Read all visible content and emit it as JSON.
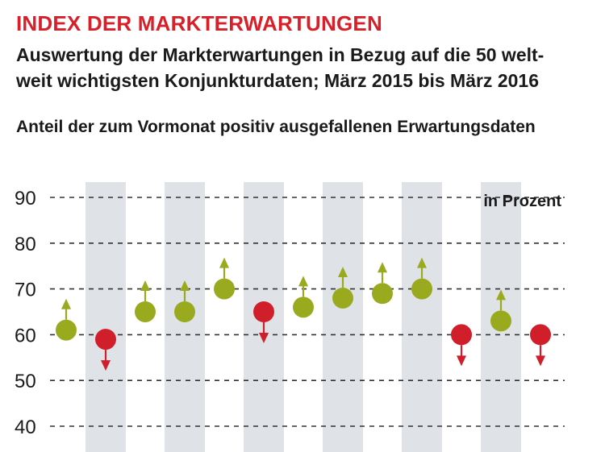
{
  "header": {
    "title": "INDEX DER MARKTERWARTUNGEN",
    "subtitle_line1": "Auswertung der Markterwartungen in Bezug auf die 50 welt-",
    "subtitle_line2": "weit wichtigsten Konjunkturdaten; März 2015 bis März 2016",
    "caption": "Anteil der zum Vormonat positiv ausgefallenen Erwartungsdaten"
  },
  "chart_data": {
    "type": "scatter",
    "unit_label": "in Prozent",
    "ylim": [
      40,
      90
    ],
    "yticks": [
      90,
      80,
      70,
      60,
      50,
      40
    ],
    "grid": true,
    "points": [
      {
        "value": 61,
        "direction": "up"
      },
      {
        "value": 59,
        "direction": "down"
      },
      {
        "value": 65,
        "direction": "up"
      },
      {
        "value": 65,
        "direction": "up"
      },
      {
        "value": 70,
        "direction": "up"
      },
      {
        "value": 65,
        "direction": "down"
      },
      {
        "value": 66,
        "direction": "up"
      },
      {
        "value": 68,
        "direction": "up"
      },
      {
        "value": 69,
        "direction": "up"
      },
      {
        "value": 70,
        "direction": "up"
      },
      {
        "value": 60,
        "direction": "down"
      },
      {
        "value": 63,
        "direction": "up"
      },
      {
        "value": 60,
        "direction": "down"
      }
    ],
    "colors": {
      "up": "#9aaa1e",
      "down": "#d01e2b",
      "band": "#dfe3e8",
      "grid": "#333333",
      "title": "#d8202a"
    }
  }
}
